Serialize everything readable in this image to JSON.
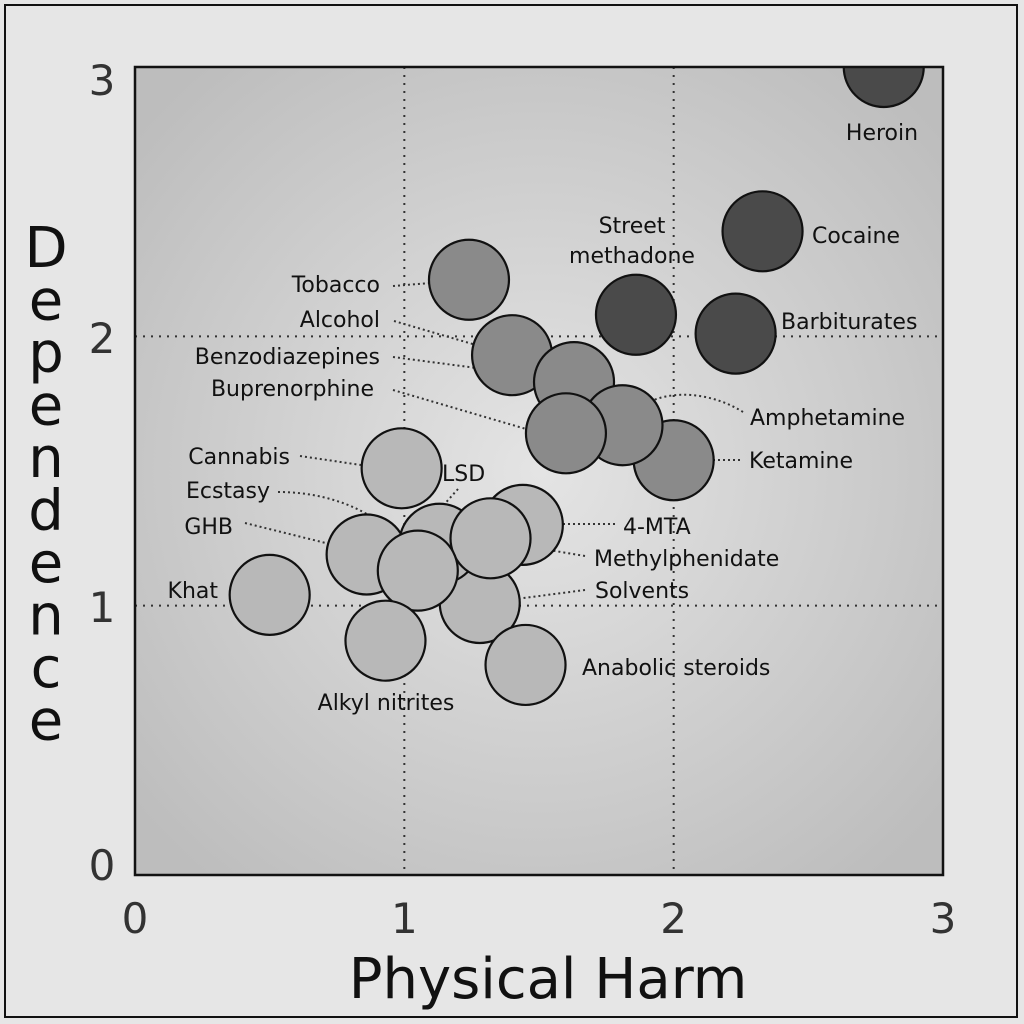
{
  "chart_data": {
    "type": "scatter",
    "xlabel": "Physical Harm",
    "ylabel": "Dependence",
    "xlim": [
      0,
      3
    ],
    "ylim": [
      0,
      3
    ],
    "x_ticks": [
      "0",
      "1",
      "2",
      "3"
    ],
    "y_ticks": [
      "0",
      "1",
      "2",
      "3"
    ],
    "grid": "dotted at 1 and 2",
    "shade_colors": {
      "high": "#4a4a4a",
      "mid": "#8a8a8a",
      "low": "#b8b8b8"
    },
    "points": [
      {
        "name": "Heroin",
        "x": 2.78,
        "y": 3.0,
        "shade": "high"
      },
      {
        "name": "Cocaine",
        "x": 2.33,
        "y": 2.39,
        "shade": "high"
      },
      {
        "name": "Barbiturates",
        "x": 2.23,
        "y": 2.01,
        "shade": "high"
      },
      {
        "name": "Street methadone",
        "x": 1.86,
        "y": 2.08,
        "shade": "high"
      },
      {
        "name": "Alcohol",
        "x": 1.4,
        "y": 1.93,
        "shade": "mid"
      },
      {
        "name": "Ketamine",
        "x": 2.0,
        "y": 1.54,
        "shade": "mid"
      },
      {
        "name": "Benzodiazepines",
        "x": 1.63,
        "y": 1.83,
        "shade": "mid"
      },
      {
        "name": "Amphetamine",
        "x": 1.81,
        "y": 1.67,
        "shade": "mid"
      },
      {
        "name": "Tobacco",
        "x": 1.24,
        "y": 2.21,
        "shade": "mid"
      },
      {
        "name": "Buprenorphine",
        "x": 1.6,
        "y": 1.64,
        "shade": "mid"
      },
      {
        "name": "Cannabis",
        "x": 0.99,
        "y": 1.51,
        "shade": "low"
      },
      {
        "name": "Solvents",
        "x": 1.28,
        "y": 1.01,
        "shade": "low"
      },
      {
        "name": "4-MTA",
        "x": 1.44,
        "y": 1.3,
        "shade": "low"
      },
      {
        "name": "LSD",
        "x": 1.13,
        "y": 1.23,
        "shade": "low"
      },
      {
        "name": "Methylphenidate",
        "x": 1.32,
        "y": 1.25,
        "shade": "low"
      },
      {
        "name": "Anabolic steroids",
        "x": 1.45,
        "y": 0.78,
        "shade": "low"
      },
      {
        "name": "GHB",
        "x": 0.86,
        "y": 1.19,
        "shade": "low"
      },
      {
        "name": "Ecstasy",
        "x": 1.05,
        "y": 1.13,
        "shade": "low"
      },
      {
        "name": "Alkyl nitrites",
        "x": 0.93,
        "y": 0.87,
        "shade": "low"
      },
      {
        "name": "Khat",
        "x": 0.5,
        "y": 1.04,
        "shade": "low"
      }
    ],
    "labels": [
      {
        "text": "Heroin",
        "for": "Heroin"
      },
      {
        "text": "Cocaine",
        "for": "Cocaine"
      },
      {
        "text": "Street",
        "for": "Street methadone"
      },
      {
        "text": "methadone",
        "for": "Street methadone"
      },
      {
        "text": "Barbiturates",
        "for": "Barbiturates"
      },
      {
        "text": "Tobacco",
        "for": "Tobacco"
      },
      {
        "text": "Alcohol",
        "for": "Alcohol"
      },
      {
        "text": "Benzodiazepines",
        "for": "Benzodiazepines"
      },
      {
        "text": "Buprenorphine",
        "for": "Buprenorphine"
      },
      {
        "text": "Amphetamine",
        "for": "Amphetamine"
      },
      {
        "text": "Ketamine",
        "for": "Ketamine"
      },
      {
        "text": "Cannabis",
        "for": "Cannabis"
      },
      {
        "text": "LSD",
        "for": "LSD"
      },
      {
        "text": "Ecstasy",
        "for": "Ecstasy"
      },
      {
        "text": "GHB",
        "for": "GHB"
      },
      {
        "text": "4-MTA",
        "for": "4-MTA"
      },
      {
        "text": "Methylphenidate",
        "for": "Methylphenidate"
      },
      {
        "text": "Khat",
        "for": "Khat"
      },
      {
        "text": "Solvents",
        "for": "Solvents"
      },
      {
        "text": "Anabolic steroids",
        "for": "Anabolic steroids"
      },
      {
        "text": "Alkyl nitrites",
        "for": "Alkyl nitrites"
      }
    ]
  }
}
